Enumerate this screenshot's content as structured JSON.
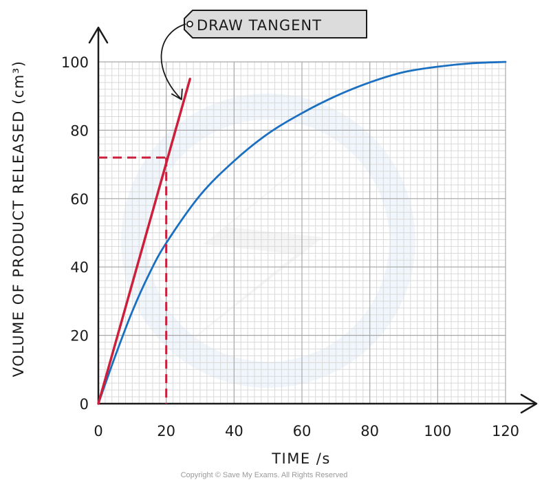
{
  "chart_data": {
    "type": "line",
    "xlabel": "TIME /s",
    "ylabel": "VOLUME OF PRODUCT RELEASED (cm³)",
    "xlim": [
      0,
      120
    ],
    "ylim": [
      0,
      100
    ],
    "x_ticks": [
      0,
      20,
      40,
      60,
      80,
      100,
      120
    ],
    "y_ticks": [
      0,
      20,
      40,
      60,
      80,
      100
    ],
    "grid": true,
    "series": [
      {
        "color": "#1a6fc0",
        "x": [
          0,
          5,
          10,
          15,
          20,
          30,
          40,
          50,
          60,
          70,
          80,
          90,
          100,
          110,
          120
        ],
        "y": [
          0,
          14,
          27,
          38,
          47,
          61,
          71,
          79,
          85,
          90,
          94,
          97,
          98.6,
          99.6,
          100
        ]
      }
    ],
    "tangent": {
      "color": "#cc1f3c",
      "x": [
        0,
        27
      ],
      "y": [
        0,
        95
      ]
    },
    "guide": {
      "color": "#cc1f3c",
      "x": 20,
      "y": 72
    },
    "annotation": {
      "text": "DRAW TANGENT",
      "target_x": 24.5,
      "target_y": 89
    }
  },
  "copyright": "Copyright © Save My Exams. All Rights Reserved"
}
